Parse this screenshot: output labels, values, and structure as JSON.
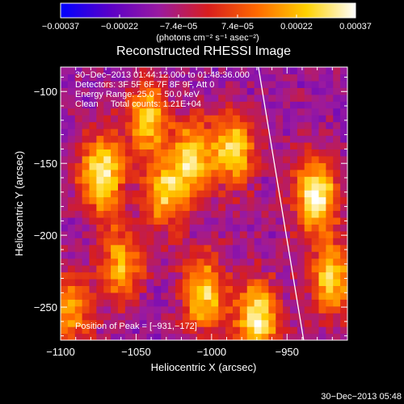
{
  "chart_data": {
    "type": "heatmap",
    "title": "Reconstructed RHESSI Image",
    "xlabel": "Heliocentric X (arcsec)",
    "ylabel": "Heliocentric Y (arcsec)",
    "xlim": [
      -1100,
      -910
    ],
    "ylim": [
      -273,
      -83
    ],
    "x_ticks": [
      -1100,
      -1050,
      -1000,
      -950
    ],
    "y_ticks": [
      -250,
      -200,
      -150,
      -100
    ],
    "x_tick_labels": [
      "−1100",
      "−1050",
      "−1000",
      "−950"
    ],
    "y_tick_labels": [
      "−250",
      "−200",
      "−150",
      "−100"
    ],
    "colorbar": {
      "min": -0.00037,
      "max": 0.00037,
      "tick_labels": [
        "−0.00037",
        "−0.00022",
        "−7.4e−05",
        "7.4e−05",
        "0.00022",
        "0.00037"
      ],
      "units": "(photons cm⁻² s⁻¹ asec⁻²)",
      "colors": [
        "#0000ff",
        "#5a00c8",
        "#9a1aa0",
        "#d81e1e",
        "#ff6a00",
        "#ffd100",
        "#ffffff"
      ]
    },
    "info_lines": [
      "30−Dec−2013 01:44:12.000 to 01:48:36.000",
      "Detectors: 3F 5F 6F 7F 8F 9F, Att 0",
      "Energy Range: 25.0 − 50.0 keV",
      "Clean     Total counts: 1.21E+04"
    ],
    "peak_label": "Position of Peak = [−931,−172]",
    "limb_line": [
      [
        -969,
        -83
      ],
      [
        -939,
        -273
      ]
    ],
    "hotspots": [
      {
        "x": -1073,
        "y": -157,
        "value": 0.00036
      },
      {
        "x": -1043,
        "y": -118,
        "value": 0.00026
      },
      {
        "x": -1030,
        "y": -170,
        "value": 0.00024
      },
      {
        "x": -1012,
        "y": -145,
        "value": 0.00026
      },
      {
        "x": -985,
        "y": -140,
        "value": 0.00027
      },
      {
        "x": -1060,
        "y": -220,
        "value": 0.00022
      },
      {
        "x": -1005,
        "y": -240,
        "value": 0.00027
      },
      {
        "x": -970,
        "y": -258,
        "value": 0.00036
      },
      {
        "x": -931,
        "y": -172,
        "value": 0.00037
      },
      {
        "x": -920,
        "y": -230,
        "value": 0.00027
      },
      {
        "x": -1093,
        "y": -252,
        "value": 0.00018
      }
    ]
  },
  "footer": {
    "timestamp": "30−Dec−2013 05:48"
  }
}
